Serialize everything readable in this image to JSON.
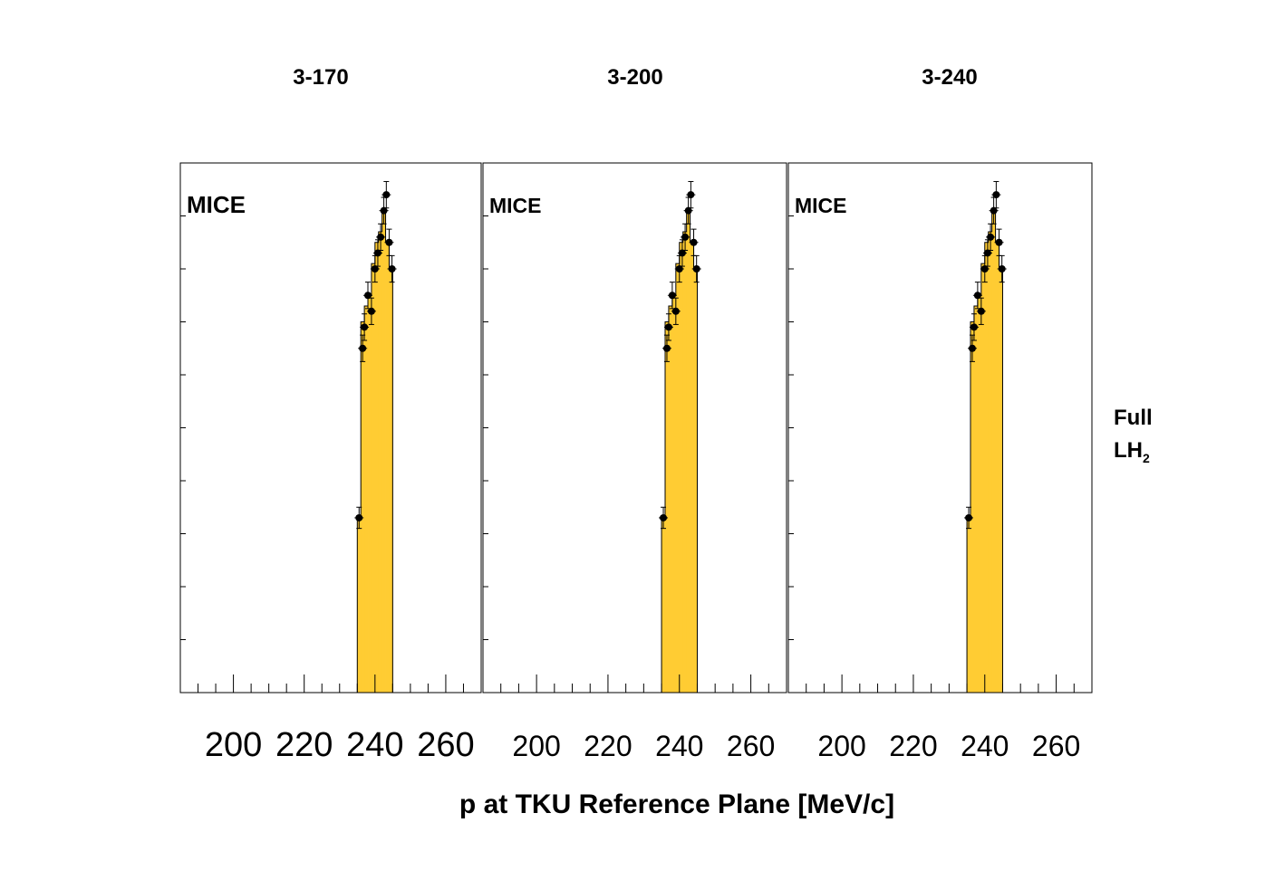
{
  "side_label": {
    "line1": "Full",
    "line2_main": "LH",
    "line2_sub": "2"
  },
  "x_title": "p at TKU Reference Plane [MeV/c]",
  "chart_data": [
    {
      "type": "bar",
      "title": "3-170",
      "annotation": "MICE",
      "xlabel": "p at TKU Reference Plane [MeV/c]",
      "xlim": [
        185,
        270
      ],
      "ylim": [
        0,
        1
      ],
      "xticks": [
        200,
        220,
        240,
        260
      ],
      "bin_width": 1,
      "series": [
        {
          "name": "",
          "style": "histogram",
          "x": [
            235.5,
            236.5,
            237.5,
            238.5,
            239.5,
            240.5,
            241.5,
            242.5,
            243.5,
            244.5
          ],
          "values": [
            0.33,
            0.7,
            0.73,
            0.75,
            0.81,
            0.85,
            0.87,
            0.91,
            0.85,
            0.8
          ]
        },
        {
          "name": "",
          "style": "points",
          "x": [
            235.5,
            236.5,
            237.0,
            238.0,
            239.0,
            240.0,
            240.8,
            241.6,
            242.5,
            243.2,
            244.0,
            244.8
          ],
          "values": [
            0.33,
            0.65,
            0.69,
            0.75,
            0.72,
            0.8,
            0.83,
            0.86,
            0.91,
            0.94,
            0.85,
            0.8
          ],
          "errors": [
            0.02,
            0.025,
            0.025,
            0.025,
            0.025,
            0.025,
            0.025,
            0.025,
            0.025,
            0.025,
            0.025,
            0.025
          ]
        }
      ]
    },
    {
      "type": "bar",
      "title": "3-200",
      "annotation": "MICE",
      "xlabel": "p at TKU Reference Plane [MeV/c]",
      "xlim": [
        185,
        270
      ],
      "ylim": [
        0,
        1
      ],
      "xticks": [
        200,
        220,
        240,
        260
      ],
      "bin_width": 1,
      "series": [
        {
          "name": "",
          "style": "histogram",
          "x": [
            235.5,
            236.5,
            237.5,
            238.5,
            239.5,
            240.5,
            241.5,
            242.5,
            243.5,
            244.5
          ],
          "values": [
            0.33,
            0.7,
            0.73,
            0.75,
            0.81,
            0.85,
            0.87,
            0.91,
            0.85,
            0.8
          ]
        },
        {
          "name": "",
          "style": "points",
          "x": [
            235.5,
            236.5,
            237.0,
            238.0,
            239.0,
            240.0,
            240.8,
            241.6,
            242.5,
            243.2,
            244.0,
            244.8
          ],
          "values": [
            0.33,
            0.65,
            0.69,
            0.75,
            0.72,
            0.8,
            0.83,
            0.86,
            0.91,
            0.94,
            0.85,
            0.8
          ],
          "errors": [
            0.02,
            0.025,
            0.025,
            0.025,
            0.025,
            0.025,
            0.025,
            0.025,
            0.025,
            0.025,
            0.025,
            0.025
          ]
        }
      ]
    },
    {
      "type": "bar",
      "title": "3-240",
      "annotation": "MICE",
      "xlabel": "p at TKU Reference Plane [MeV/c]",
      "xlim": [
        185,
        270
      ],
      "ylim": [
        0,
        1
      ],
      "xticks": [
        200,
        220,
        240,
        260
      ],
      "bin_width": 1,
      "series": [
        {
          "name": "",
          "style": "histogram",
          "x": [
            235.5,
            236.5,
            237.5,
            238.5,
            239.5,
            240.5,
            241.5,
            242.5,
            243.5,
            244.5
          ],
          "values": [
            0.33,
            0.7,
            0.73,
            0.75,
            0.81,
            0.85,
            0.87,
            0.91,
            0.85,
            0.8
          ]
        },
        {
          "name": "",
          "style": "points",
          "x": [
            235.5,
            236.5,
            237.0,
            238.0,
            239.0,
            240.0,
            240.8,
            241.6,
            242.5,
            243.2,
            244.0,
            244.8
          ],
          "values": [
            0.33,
            0.65,
            0.69,
            0.75,
            0.72,
            0.8,
            0.83,
            0.86,
            0.91,
            0.94,
            0.85,
            0.8
          ],
          "errors": [
            0.02,
            0.025,
            0.025,
            0.025,
            0.025,
            0.025,
            0.025,
            0.025,
            0.025,
            0.025,
            0.025,
            0.025
          ]
        }
      ]
    }
  ],
  "colors": {
    "fill": "#ffcc33",
    "marker": "#000000",
    "frame": "#000000"
  }
}
